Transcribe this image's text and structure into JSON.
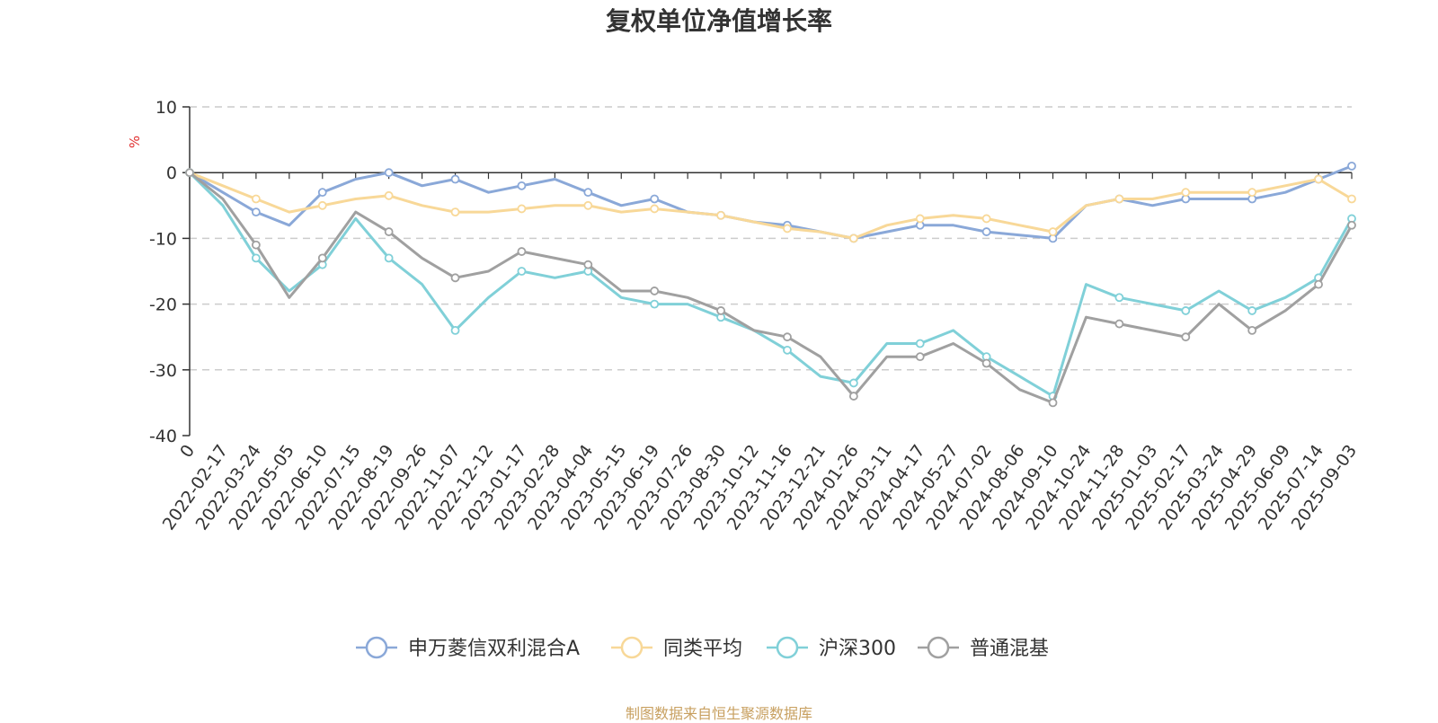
{
  "title": "复权单位净值增长率",
  "source_note": "制图数据来自恒生聚源数据库",
  "chart_data": {
    "type": "line",
    "title": "复权单位净值增长率",
    "ylabel": "%",
    "ylim": [
      -40,
      10
    ],
    "yticks": [
      10,
      0,
      -10,
      -20,
      -30,
      -40
    ],
    "grid": true,
    "legend_position": "bottom",
    "x": [
      "0",
      "2022-02-17",
      "2022-03-24",
      "2022-05-05",
      "2022-06-10",
      "2022-07-15",
      "2022-08-19",
      "2022-09-26",
      "2022-11-07",
      "2022-12-12",
      "2023-01-17",
      "2023-02-28",
      "2023-04-04",
      "2023-05-15",
      "2023-06-19",
      "2023-07-26",
      "2023-08-30",
      "2023-10-12",
      "2023-11-16",
      "2023-12-21",
      "2024-01-26",
      "2024-03-11",
      "2024-04-17",
      "2024-05-27",
      "2024-07-02",
      "2024-08-06",
      "2024-09-10",
      "2024-10-24",
      "2024-11-28",
      "2025-01-03",
      "2025-02-17",
      "2025-03-24",
      "2025-04-29",
      "2025-06-09",
      "2025-07-14",
      "2025-09-03"
    ],
    "series": [
      {
        "name": "申万菱信双利混合A",
        "color": "#8aa8d8",
        "values": [
          0,
          -3,
          -6,
          -8,
          -3,
          -1,
          0,
          -2,
          -1,
          -3,
          -2,
          -1,
          -3,
          -5,
          -4,
          -6,
          -6.5,
          -7.5,
          -8,
          -9,
          -10,
          -9,
          -8,
          -8,
          -9,
          -9.5,
          -10,
          -5,
          -4,
          -5,
          -4,
          -4,
          -4,
          -3,
          -1,
          1
        ]
      },
      {
        "name": "同类平均",
        "color": "#f8d898",
        "values": [
          0,
          -2,
          -4,
          -6,
          -5,
          -4,
          -3.5,
          -5,
          -6,
          -6,
          -5.5,
          -5,
          -5,
          -6,
          -5.5,
          -6,
          -6.5,
          -7.5,
          -8.5,
          -9,
          -10,
          -8,
          -7,
          -6.5,
          -7,
          -8,
          -9,
          -5,
          -4,
          -4,
          -3,
          -3,
          -3,
          -2,
          -1,
          -4
        ]
      },
      {
        "name": "沪深300",
        "color": "#80d0d8",
        "values": [
          0,
          -5,
          -13,
          -18,
          -14,
          -7,
          -13,
          -17,
          -24,
          -19,
          -15,
          -16,
          -15,
          -19,
          -20,
          -20,
          -22,
          -24,
          -27,
          -31,
          -32,
          -26,
          -26,
          -24,
          -28,
          -31,
          -34,
          -17,
          -19,
          -20,
          -21,
          -18,
          -21,
          -19,
          -16,
          -7
        ]
      },
      {
        "name": "普通混基",
        "color": "#a0a0a0",
        "values": [
          0,
          -4,
          -11,
          -19,
          -13,
          -6,
          -9,
          -13,
          -16,
          -15,
          -12,
          -13,
          -14,
          -18,
          -18,
          -19,
          -21,
          -24,
          -25,
          -28,
          -34,
          -28,
          -28,
          -26,
          -29,
          -33,
          -35,
          -22,
          -23,
          -24,
          -25,
          -20,
          -24,
          -21,
          -17,
          -8
        ]
      }
    ]
  }
}
